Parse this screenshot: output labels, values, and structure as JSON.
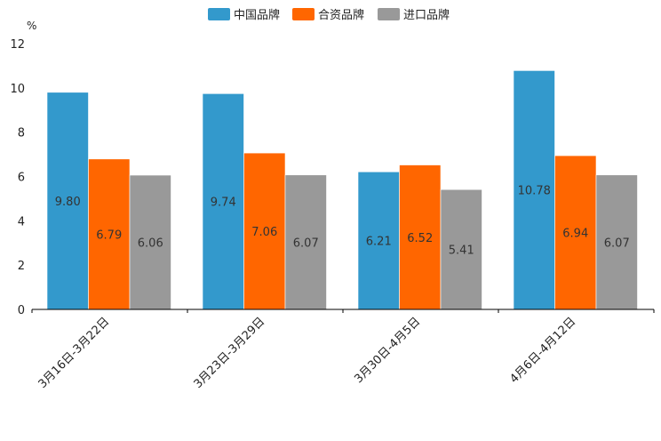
{
  "chart_data": {
    "type": "bar",
    "title": "",
    "ylabel": "%",
    "xlabel": "",
    "ylim": [
      0,
      12
    ],
    "yticks": [
      0,
      2,
      4,
      6,
      8,
      10,
      12
    ],
    "categories": [
      "3月16日-3月22日",
      "3月23日-3月29日",
      "3月30日-4月5日",
      "4月6日-4月12日"
    ],
    "series": [
      {
        "name": "中国品牌",
        "color": "#3399CC",
        "values": [
          9.8,
          9.74,
          6.21,
          10.78
        ],
        "labels": [
          "9.80",
          "9.74",
          "6.21",
          "10.78"
        ]
      },
      {
        "name": "合资品牌",
        "color": "#FF6600",
        "values": [
          6.79,
          7.06,
          6.52,
          6.94
        ],
        "labels": [
          "6.79",
          "7.06",
          "6.52",
          "6.94"
        ]
      },
      {
        "name": "进口品牌",
        "color": "#999999",
        "values": [
          6.06,
          6.07,
          5.41,
          6.07
        ],
        "labels": [
          "6.06",
          "6.07",
          "5.41",
          "6.07"
        ]
      }
    ]
  }
}
